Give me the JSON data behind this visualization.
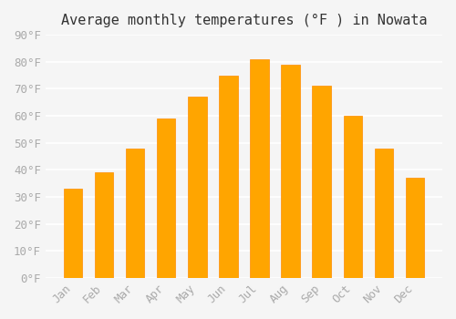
{
  "title": "Average monthly temperatures (°F ) in Nowata",
  "months": [
    "Jan",
    "Feb",
    "Mar",
    "Apr",
    "May",
    "Jun",
    "Jul",
    "Aug",
    "Sep",
    "Oct",
    "Nov",
    "Dec"
  ],
  "values": [
    33,
    39,
    48,
    59,
    67,
    75,
    81,
    79,
    71,
    60,
    48,
    37
  ],
  "bar_color": "#FFA500",
  "bar_edge_color": "#FF8C00",
  "background_color": "#f5f5f5",
  "grid_color": "#ffffff",
  "ylim": [
    0,
    90
  ],
  "yticks": [
    0,
    10,
    20,
    30,
    40,
    50,
    60,
    70,
    80,
    90
  ],
  "ytick_labels": [
    "0°F",
    "10°F",
    "20°F",
    "30°F",
    "40°F",
    "50°F",
    "60°F",
    "70°F",
    "80°F",
    "90°F"
  ],
  "title_fontsize": 11,
  "tick_fontsize": 9,
  "tick_color": "#aaaaaa",
  "tick_font_family": "monospace"
}
